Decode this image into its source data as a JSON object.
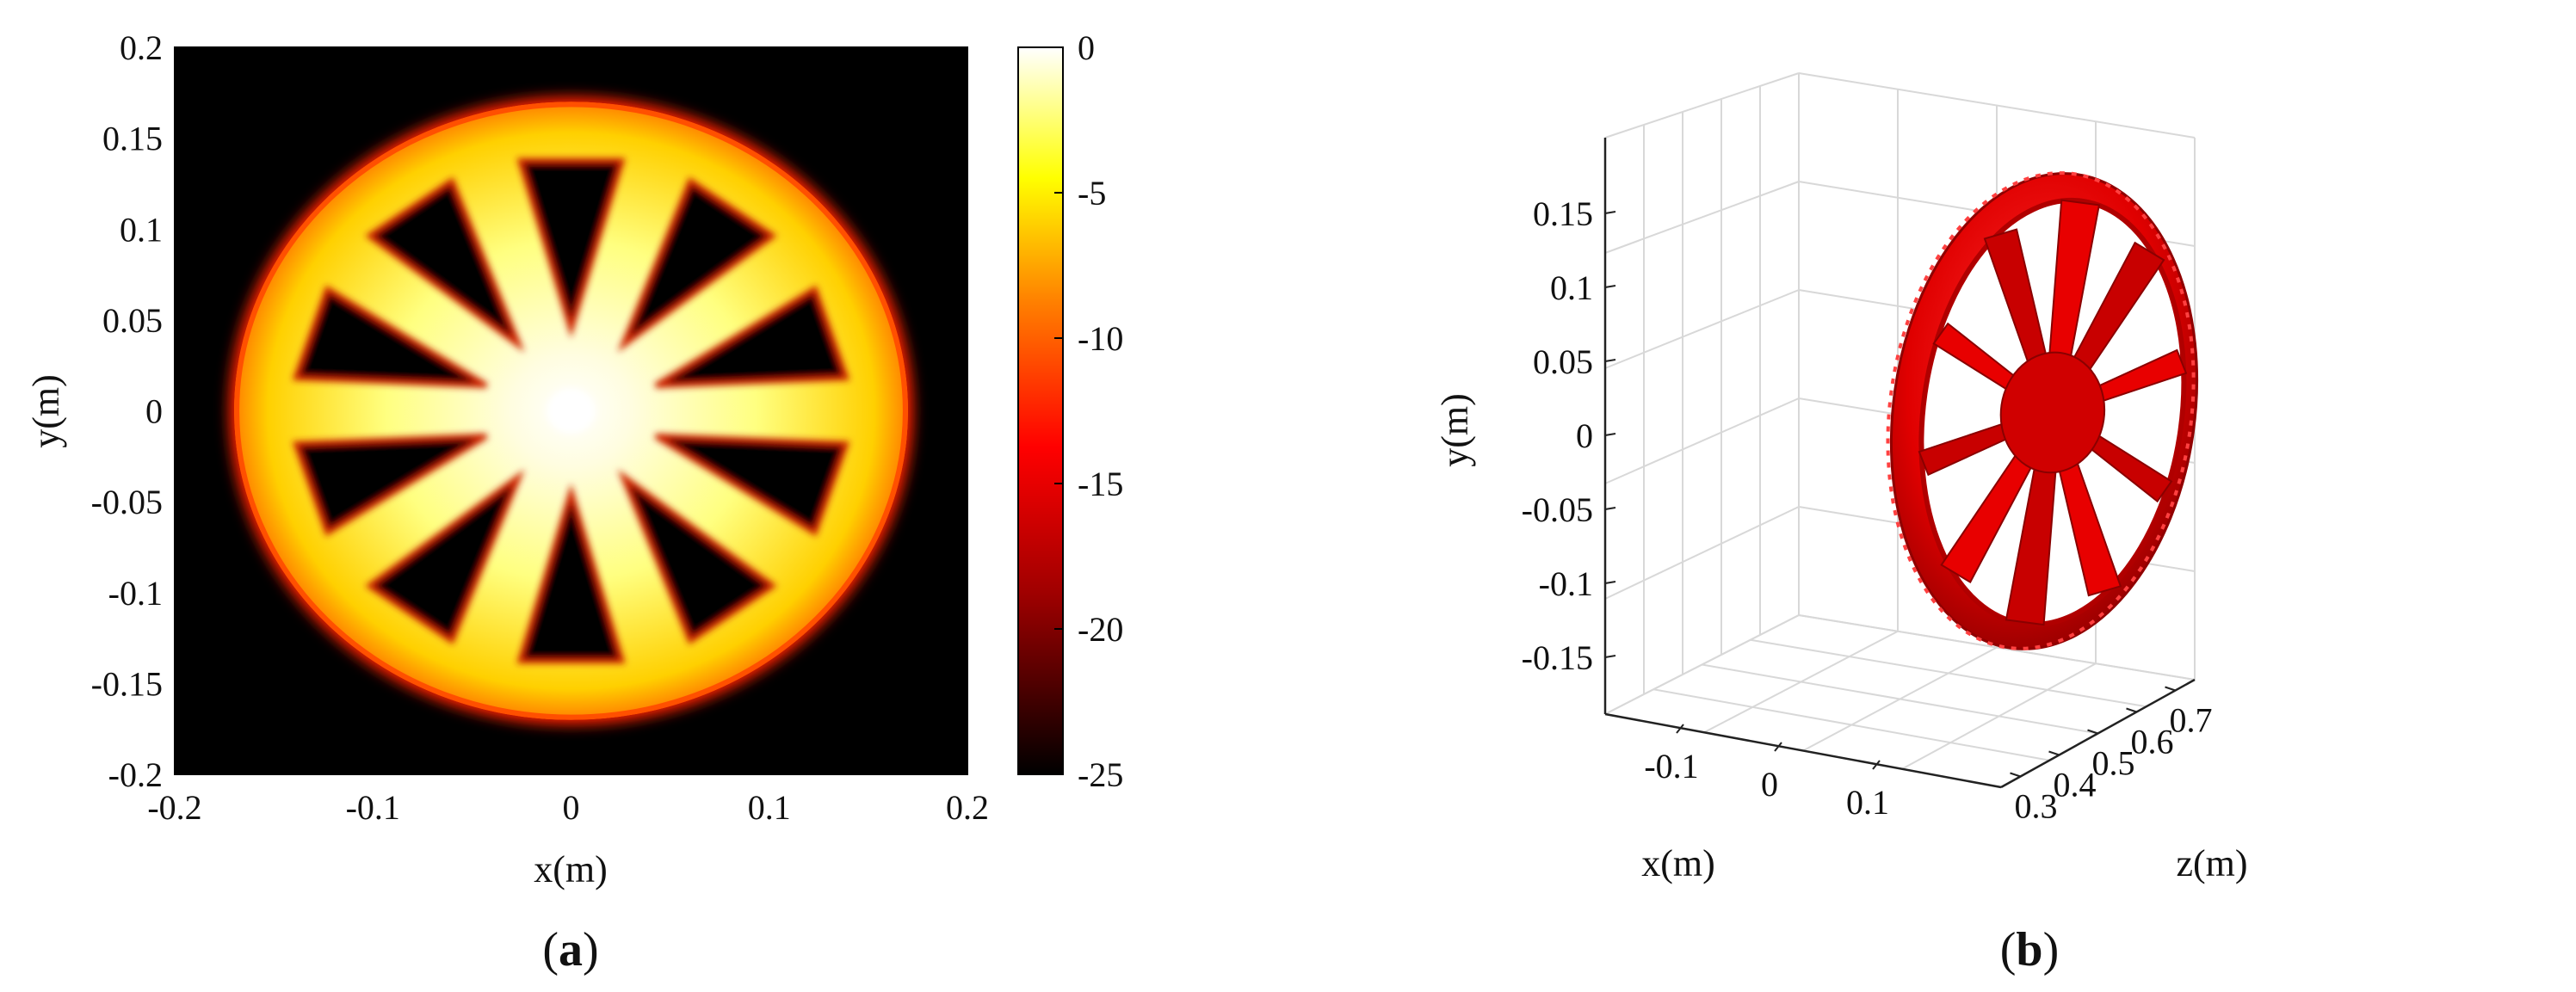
{
  "chart_data": [
    {
      "type": "heatmap",
      "panel_label": "(a)",
      "panel_letter": "a",
      "xlabel": "x(m)",
      "ylabel": "y(m)",
      "xlim": [
        -0.2,
        0.2
      ],
      "ylim": [
        -0.2,
        0.2
      ],
      "xticks": [
        "-0.2",
        "-0.1",
        "0",
        "0.1",
        "0.2"
      ],
      "yticks": [
        "0.2",
        "0.15",
        "0.1",
        "0.05",
        "0",
        "-0.05",
        "-0.1",
        "-0.15",
        "-0.2"
      ],
      "colorbar": {
        "range": [
          -25,
          0
        ],
        "ticks": [
          "0",
          "-5",
          "-10",
          "-15",
          "-20",
          "-25"
        ],
        "colormap": "hot",
        "colors": [
          "#000000",
          "#ff0000",
          "#ff8000",
          "#ffff00",
          "#ffffff"
        ]
      },
      "background_color": "#000000",
      "wheel": {
        "center": [
          0,
          0
        ],
        "outer_radius": 0.17,
        "rim_inner_radius": 0.14,
        "spokes": 10,
        "hub_radius": 0.02
      }
    },
    {
      "type": "surface3d",
      "panel_label": "(b)",
      "panel_letter": "b",
      "xlabel": "x(m)",
      "ylabel": "y(m)",
      "zlabel": "z(m)",
      "xticks": [
        "-0.1",
        "0",
        "0.1"
      ],
      "yticks": [
        "0.15",
        "0.1",
        "0.05",
        "0",
        "-0.05",
        "-0.1",
        "-0.15"
      ],
      "zticks": [
        "0.3",
        "0.4",
        "0.5",
        "0.6",
        "0.7"
      ],
      "surface_color": "#e00000",
      "grid": true
    }
  ]
}
